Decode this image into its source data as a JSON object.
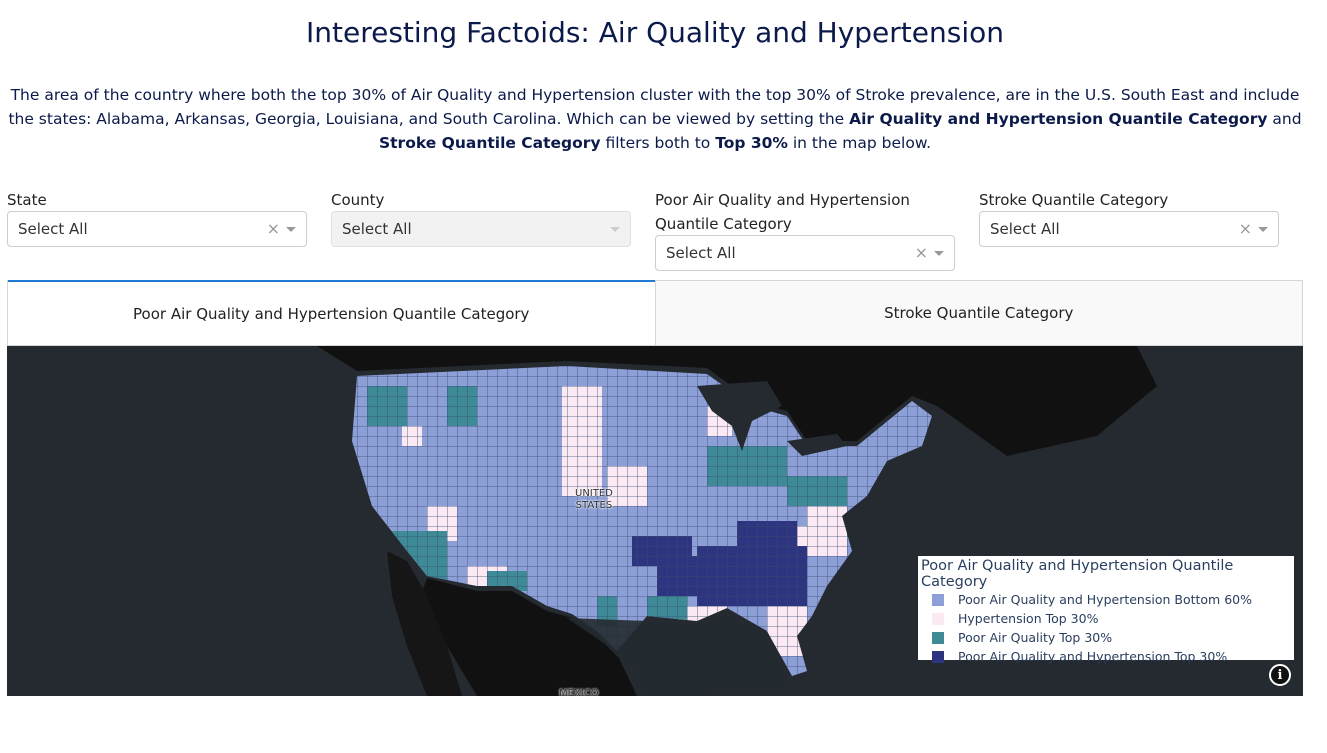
{
  "page": {
    "title": "Interesting Factoids: Air Quality and Hypertension",
    "description": {
      "part1": "The area of the country where both the top 30% of Air Quality and Hypertension cluster with the top 30% of Stroke prevalence, are in the U.S. South East and include the states: Alabama, Arkansas, Georgia, Louisiana, and South Carolina. Which can be viewed by setting the ",
      "bold1": "Air Quality and Hypertension Quantile Category",
      "part2": " and ",
      "bold2": "Stroke Quantile Category",
      "part3": " filters both to ",
      "bold3": "Top 30%",
      "part4": " in the map below."
    }
  },
  "filters": {
    "state": {
      "label": "State",
      "value": "Select All",
      "clear": "×"
    },
    "county": {
      "label": "County",
      "value": "Select All"
    },
    "air_quality": {
      "label": "Poor Air Quality and Hypertension Quantile Category",
      "value": "Select All",
      "clear": "×"
    },
    "stroke": {
      "label": "Stroke Quantile Category",
      "value": "Select All",
      "clear": "×"
    }
  },
  "tabs": [
    {
      "label": "Poor Air Quality and Hypertension Quantile Category",
      "active": true
    },
    {
      "label": "Stroke Quantile Category",
      "active": false
    }
  ],
  "map": {
    "labels": {
      "country": "UNITED\nSTATES",
      "mexico": "MEXICO"
    },
    "info_icon": "i",
    "legend": {
      "title": "Poor Air Quality and Hypertension Quantile Category",
      "items": [
        {
          "label": "Poor Air Quality and Hypertension Bottom 60%",
          "color": "#8c9fd6"
        },
        {
          "label": "Hypertension Top 30%",
          "color": "#fbeaf3"
        },
        {
          "label": "Poor Air Quality Top 30%",
          "color": "#3e8a97"
        },
        {
          "label": "Poor Air Quality and Hypertension Top 30%",
          "color": "#2e3580"
        }
      ]
    },
    "colors": {
      "ocean": "#242a30",
      "land_other": "#111111",
      "bottom60": "#8c9fd6",
      "hyper": "#fbeaf3",
      "air": "#3e8a97",
      "both": "#2e3580"
    }
  }
}
